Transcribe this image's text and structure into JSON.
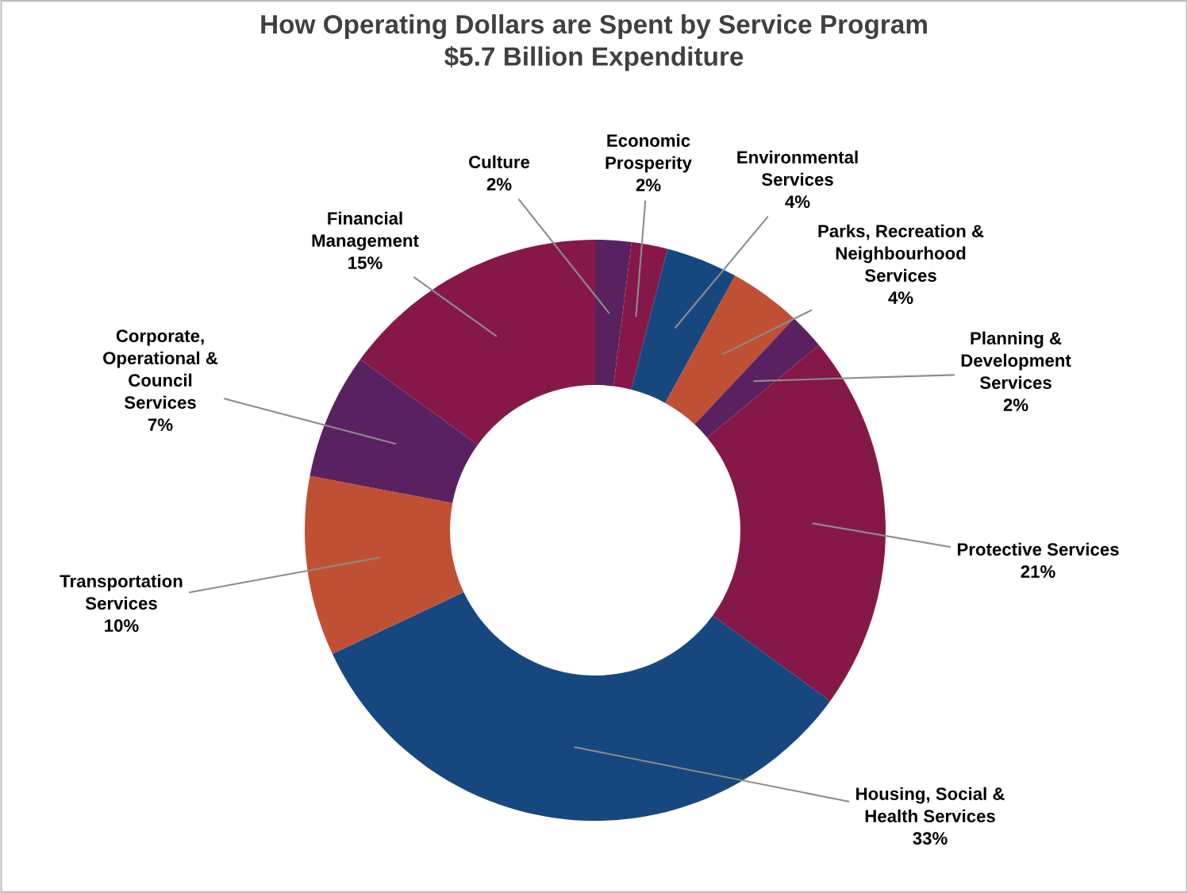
{
  "chart_data": {
    "type": "donut",
    "title": "How Operating Dollars are Spent by Service Program\n$5.7 Billion Expenditure",
    "categories": [
      "Culture",
      "Economic\nProsperity",
      "Environmental\nServices",
      "Parks, Recreation &\nNeighbourhood\nServices",
      "Planning &\nDevelopment\nServices",
      "Protective Services",
      "Housing, Social &\nHealth Services",
      "Transportation\nServices",
      "Corporate,\nOperational &\nCouncil\nServices",
      "Financial\nManagement"
    ],
    "values": [
      2,
      2,
      4,
      4,
      2,
      21,
      33,
      10,
      7,
      15
    ],
    "value_labels": [
      "2%",
      "2%",
      "4%",
      "4%",
      "2%",
      "21%",
      "33%",
      "10%",
      "7%",
      "15%"
    ],
    "colors": [
      "#5a2160",
      "#861849",
      "#17477f",
      "#c05033",
      "#5a2160",
      "#861849",
      "#17477f",
      "#c05033",
      "#5a2160",
      "#861849"
    ],
    "legend": false
  }
}
